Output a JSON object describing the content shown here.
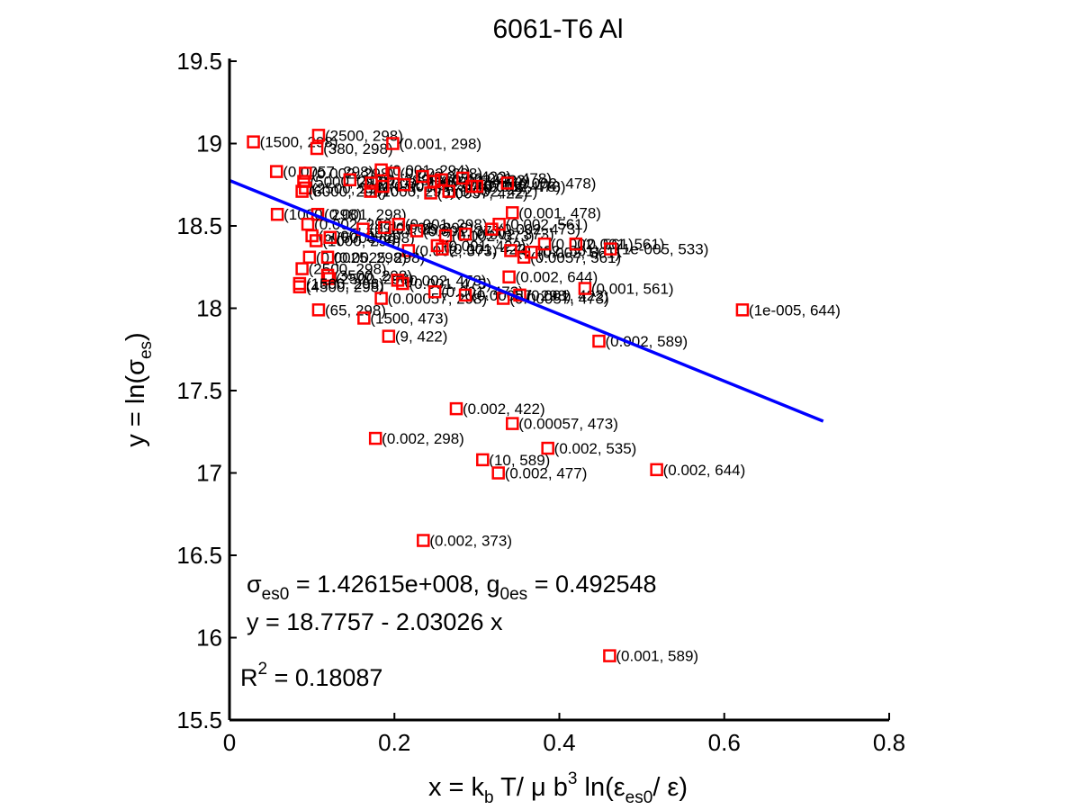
{
  "chart_data": {
    "type": "scatter",
    "title": "6061-T6 Al",
    "xlabel": {
      "main": "x = k",
      "b": "b",
      "mid": " T/ μ b",
      "sup3": "3",
      "ln": " ln(ε",
      "es0": "es0",
      "end": "/ ε)"
    },
    "ylabel": {
      "main": "y = ln(σ",
      "es": "es",
      "end": ")"
    },
    "xlim": [
      0,
      0.8
    ],
    "ylim": [
      15.5,
      19.5
    ],
    "x_ticks": [
      0,
      0.2,
      0.4,
      0.6,
      0.8
    ],
    "x_tick_labels": [
      "0",
      "0.2",
      "0.4",
      "0.6",
      "0.8"
    ],
    "y_ticks": [
      15.5,
      16,
      16.5,
      17,
      17.5,
      18,
      18.5,
      19,
      19.5
    ],
    "y_tick_labels": [
      "15.5",
      "16",
      "16.5",
      "17",
      "17.5",
      "18",
      "18.5",
      "19",
      "19.5"
    ],
    "grid": false,
    "marker_color": "#ff0000",
    "line_color": "#0000ff",
    "fit_line": {
      "intercept": 18.7757,
      "slope": -2.03026,
      "x_range": [
        0,
        0.72
      ]
    },
    "annotations": {
      "sigma": {
        "s": "σ",
        "sub1": "es0",
        "mid": " = 1.42615e+008, g",
        "sub2": "0es",
        "end": " = 0.492548"
      },
      "equation": "y = 18.7757 - 2.03026 x",
      "r2": {
        "r": "R",
        "sup": "2",
        "end": " = 0.18087"
      }
    },
    "points": [
      {
        "x": 0.029,
        "y": 19.01,
        "label": "(1500, 298)"
      },
      {
        "x": 0.108,
        "y": 19.05,
        "label": "(2500, 298)"
      },
      {
        "x": 0.106,
        "y": 18.97,
        "label": "(380, 298)"
      },
      {
        "x": 0.198,
        "y": 19.0,
        "label": "(0.001, 298)"
      },
      {
        "x": 0.057,
        "y": 18.83,
        "label": "(0.0057, 298)"
      },
      {
        "x": 0.092,
        "y": 18.82,
        "label": "(0.002, 298)"
      },
      {
        "x": 0.09,
        "y": 18.77,
        "label": "(5000, 298)"
      },
      {
        "x": 0.092,
        "y": 18.73,
        "label": "(2500, 298)"
      },
      {
        "x": 0.088,
        "y": 18.71,
        "label": "(6000, 298)"
      },
      {
        "x": 0.146,
        "y": 18.78,
        "label": "(3000, 298)"
      },
      {
        "x": 0.172,
        "y": 18.76,
        "label": "(1000, 298)"
      },
      {
        "x": 0.171,
        "y": 18.71,
        "label": "(1000, 298)"
      },
      {
        "x": 0.184,
        "y": 18.84,
        "label": "(0.001, 294)"
      },
      {
        "x": 0.199,
        "y": 18.82,
        "label": "(0.002, 298)"
      },
      {
        "x": 0.186,
        "y": 18.74,
        "label": "(0.001, 373)"
      },
      {
        "x": 0.212,
        "y": 18.75,
        "label": "(0.002, 373)"
      },
      {
        "x": 0.234,
        "y": 18.8,
        "label": "(0.001, 422)"
      },
      {
        "x": 0.248,
        "y": 18.77,
        "label": "(0.001, 422)"
      },
      {
        "x": 0.244,
        "y": 18.7,
        "label": "(0.0057, 422)"
      },
      {
        "x": 0.257,
        "y": 18.78,
        "label": "(0.002, 422)"
      },
      {
        "x": 0.266,
        "y": 18.71,
        "label": "(0.002, 422)"
      },
      {
        "x": 0.283,
        "y": 18.79,
        "label": "(0.001, 478)"
      },
      {
        "x": 0.294,
        "y": 18.74,
        "label": "(0.002, 478)"
      },
      {
        "x": 0.3,
        "y": 18.74,
        "label": "(0.002, 478)"
      },
      {
        "x": 0.337,
        "y": 18.76,
        "label": "(0.002, 478)"
      },
      {
        "x": 0.058,
        "y": 18.57,
        "label": "(1000, 298)"
      },
      {
        "x": 0.107,
        "y": 18.57,
        "label": "(0.001, 298)"
      },
      {
        "x": 0.095,
        "y": 18.51,
        "label": "(0.002, 298)"
      },
      {
        "x": 0.1,
        "y": 18.44,
        "label": "(6000, 298)"
      },
      {
        "x": 0.105,
        "y": 18.41,
        "label": "(1000, 298)"
      },
      {
        "x": 0.122,
        "y": 18.43,
        "label": "(5000, 298)"
      },
      {
        "x": 0.162,
        "y": 18.48,
        "label": "(0.001, 298)"
      },
      {
        "x": 0.188,
        "y": 18.49,
        "label": "(0.002, 298)"
      },
      {
        "x": 0.205,
        "y": 18.51,
        "label": "(0.001, 298)"
      },
      {
        "x": 0.227,
        "y": 18.47,
        "label": "(0.001, 373)"
      },
      {
        "x": 0.262,
        "y": 18.44,
        "label": "(0.002, 373)"
      },
      {
        "x": 0.286,
        "y": 18.45,
        "label": "(0.002, 373)"
      },
      {
        "x": 0.318,
        "y": 18.48,
        "label": "(0.002, 473)"
      },
      {
        "x": 0.327,
        "y": 18.51,
        "label": "(0.002, 561)"
      },
      {
        "x": 0.343,
        "y": 18.58,
        "label": "(0.001, 478)"
      },
      {
        "x": 0.217,
        "y": 18.35,
        "label": "(0.002, 373)"
      },
      {
        "x": 0.252,
        "y": 18.38,
        "label": "(0.001, 422)"
      },
      {
        "x": 0.258,
        "y": 18.36,
        "label": "(0.001, 422)"
      },
      {
        "x": 0.341,
        "y": 18.35,
        "label": "(0.002, 561)"
      },
      {
        "x": 0.357,
        "y": 18.31,
        "label": "(0.0057, 561)"
      },
      {
        "x": 0.366,
        "y": 18.34,
        "label": "(0.002, 561)"
      },
      {
        "x": 0.382,
        "y": 18.39,
        "label": "(0.002, 561)"
      },
      {
        "x": 0.42,
        "y": 18.39,
        "label": "(0.001, 561)"
      },
      {
        "x": 0.462,
        "y": 18.36,
        "label": "(1e-005, 533)"
      },
      {
        "x": 0.097,
        "y": 18.31,
        "label": "(0.0025, 298)"
      },
      {
        "x": 0.119,
        "y": 18.31,
        "label": "(0.0025, 298)"
      },
      {
        "x": 0.088,
        "y": 18.24,
        "label": "(2500, 298)"
      },
      {
        "x": 0.119,
        "y": 18.2,
        "label": "(3500, 298)"
      },
      {
        "x": 0.121,
        "y": 18.18,
        "label": "(2500, 298)"
      },
      {
        "x": 0.085,
        "y": 18.15,
        "label": "(1500, 298)"
      },
      {
        "x": 0.085,
        "y": 18.13,
        "label": "(4500, 298)"
      },
      {
        "x": 0.204,
        "y": 18.17,
        "label": "(0.002, 473)"
      },
      {
        "x": 0.21,
        "y": 18.15,
        "label": "(0.001, 473)"
      },
      {
        "x": 0.184,
        "y": 18.06,
        "label": "(0.00057, 298)"
      },
      {
        "x": 0.249,
        "y": 18.1,
        "label": "(0.001, 473)"
      },
      {
        "x": 0.286,
        "y": 18.08,
        "label": "(0.00057, 298)"
      },
      {
        "x": 0.332,
        "y": 18.06,
        "label": "(0.00057, 473)"
      },
      {
        "x": 0.352,
        "y": 18.08,
        "label": "(0.001, 422)"
      },
      {
        "x": 0.339,
        "y": 18.19,
        "label": "(0.002, 644)"
      },
      {
        "x": 0.431,
        "y": 18.12,
        "label": "(0.001, 561)"
      },
      {
        "x": 0.108,
        "y": 17.99,
        "label": "(65, 298)"
      },
      {
        "x": 0.163,
        "y": 17.94,
        "label": "(1500, 473)"
      },
      {
        "x": 0.193,
        "y": 17.83,
        "label": "(9, 422)"
      },
      {
        "x": 0.622,
        "y": 17.99,
        "label": "(1e-005, 644)"
      },
      {
        "x": 0.448,
        "y": 17.8,
        "label": "(0.002, 589)"
      },
      {
        "x": 0.275,
        "y": 17.39,
        "label": "(0.002, 422)"
      },
      {
        "x": 0.343,
        "y": 17.3,
        "label": "(0.00057, 473)"
      },
      {
        "x": 0.177,
        "y": 17.21,
        "label": "(0.002, 298)"
      },
      {
        "x": 0.386,
        "y": 17.15,
        "label": "(0.002, 535)"
      },
      {
        "x": 0.307,
        "y": 17.08,
        "label": "(10, 589)"
      },
      {
        "x": 0.326,
        "y": 17.0,
        "label": "(0.002, 477)"
      },
      {
        "x": 0.518,
        "y": 17.02,
        "label": "(0.002, 644)"
      },
      {
        "x": 0.235,
        "y": 16.59,
        "label": "(0.002, 373)"
      },
      {
        "x": 0.461,
        "y": 15.89,
        "label": "(0.001, 589)"
      }
    ]
  }
}
